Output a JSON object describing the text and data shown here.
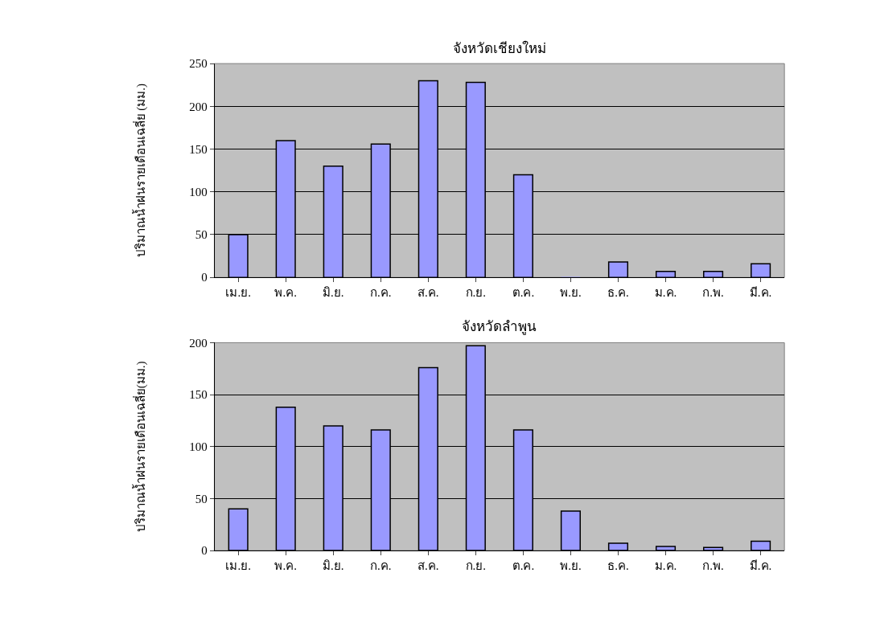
{
  "chart_data": [
    {
      "type": "bar",
      "title": "จังหวัดเชียงใหม่",
      "ylabel": "ปริมาณน้ำฝนรายเดือนเฉลี่ย (มม.)",
      "categories": [
        "เม.ย.",
        "พ.ค.",
        "มิ.ย.",
        "ก.ค.",
        "ส.ค.",
        "ก.ย.",
        "ต.ค.",
        "พ.ย.",
        "ธ.ค.",
        "ม.ค.",
        "ก.พ.",
        "มี.ค."
      ],
      "values": [
        50,
        160,
        130,
        156,
        230,
        228,
        120,
        0,
        18,
        7,
        7,
        16
      ],
      "color": "#9999ff",
      "ylim": [
        0,
        250
      ],
      "yticks": [
        0,
        50,
        100,
        150,
        200,
        250
      ],
      "grid": "y"
    },
    {
      "type": "bar",
      "title": "จังหวัดลำพูน",
      "ylabel": "ปริมาณน้ำฝนรายเดือนเฉลี่ย(มม.)",
      "categories": [
        "เม.ย.",
        "พ.ค.",
        "มิ.ย.",
        "ก.ค.",
        "ส.ค.",
        "ก.ย.",
        "ต.ค.",
        "พ.ย.",
        "ธ.ค.",
        "ม.ค.",
        "ก.พ.",
        "มี.ค."
      ],
      "values": [
        40,
        138,
        120,
        116,
        176,
        197,
        116,
        38,
        7,
        4,
        3,
        9
      ],
      "color": "#9999ff",
      "ylim": [
        0,
        200
      ],
      "yticks": [
        0,
        50,
        100,
        150,
        200
      ],
      "grid": "y"
    }
  ]
}
